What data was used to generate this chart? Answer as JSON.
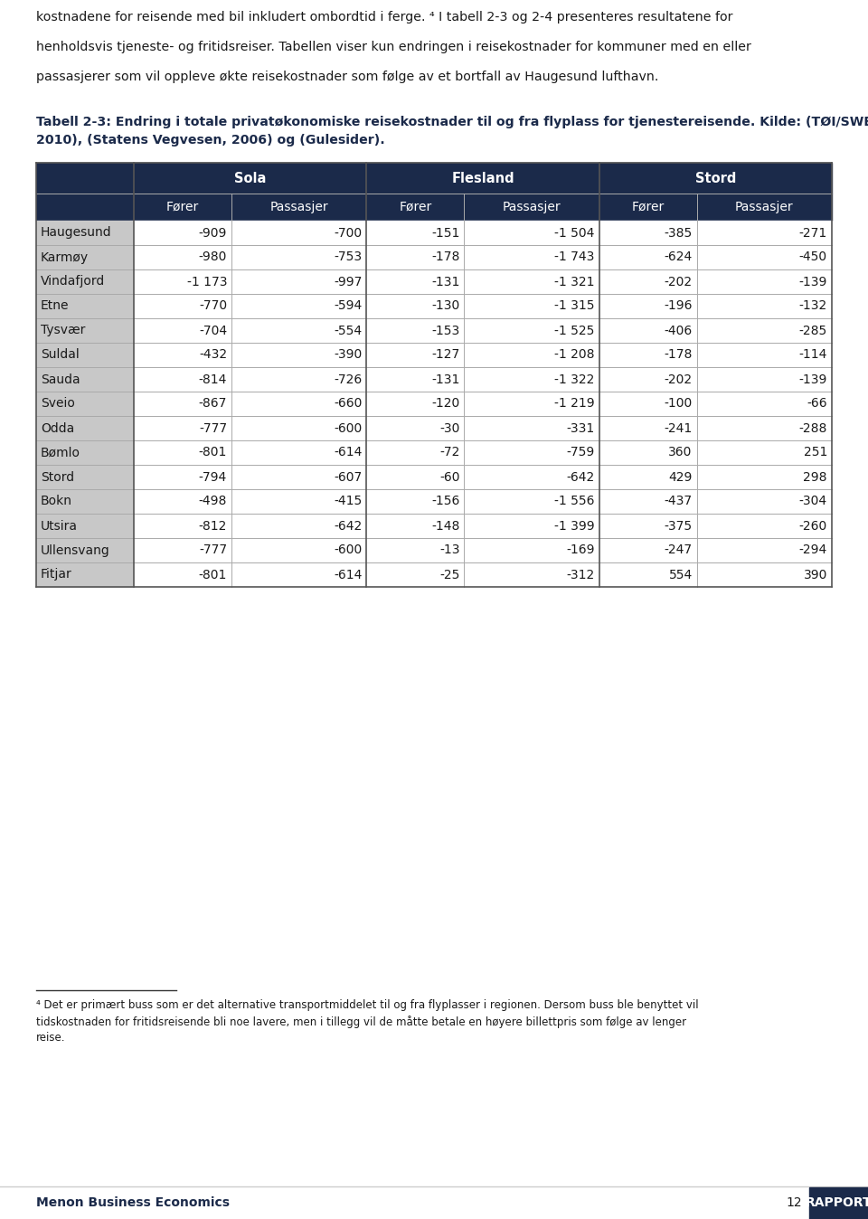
{
  "top_text_lines": [
    "kostnadene for reisende med bil inkludert ombordtid i ferge. ⁴ I tabell 2-3 og 2-4 presenteres resultatene for",
    "henholdsvis tjeneste- og fritidsreiser. Tabellen viser kun endringen i reisekostnader for kommuner med en eller",
    "passasjerer som vil oppleve økte reisekostnader som følge av et bortfall av Haugesund lufthavn."
  ],
  "caption_line1": "Tabell 2-3: Endring i totale privatøkonomiske reisekostnader til og fra flyplass for tjenestereisende. Kilde: (TØI/SWECO,",
  "caption_line2": "2010), (Statens Vegvesen, 2006) og (Gulesider).",
  "header_bg": "#1b2a4a",
  "header_text_color": "#ffffff",
  "row_label_bg": "#c8c8c8",
  "col_headers_level1_labels": [
    "Sola",
    "Flesland",
    "Stord"
  ],
  "col_headers_level2": [
    "Fører",
    "Passasjer",
    "Fører",
    "Passasjer",
    "Fører",
    "Passasjer"
  ],
  "rows": [
    [
      "Haugesund",
      "-909",
      "-700",
      "-151",
      "-1 504",
      "-385",
      "-271"
    ],
    [
      "Karmøy",
      "-980",
      "-753",
      "-178",
      "-1 743",
      "-624",
      "-450"
    ],
    [
      "Vindafjord",
      "-1 173",
      "-997",
      "-131",
      "-1 321",
      "-202",
      "-139"
    ],
    [
      "Etne",
      "-770",
      "-594",
      "-130",
      "-1 315",
      "-196",
      "-132"
    ],
    [
      "Tysvær",
      "-704",
      "-554",
      "-153",
      "-1 525",
      "-406",
      "-285"
    ],
    [
      "Suldal",
      "-432",
      "-390",
      "-127",
      "-1 208",
      "-178",
      "-114"
    ],
    [
      "Sauda",
      "-814",
      "-726",
      "-131",
      "-1 322",
      "-202",
      "-139"
    ],
    [
      "Sveio",
      "-867",
      "-660",
      "-120",
      "-1 219",
      "-100",
      "-66"
    ],
    [
      "Odda",
      "-777",
      "-600",
      "-30",
      "-331",
      "-241",
      "-288"
    ],
    [
      "Bømlo",
      "-801",
      "-614",
      "-72",
      "-759",
      "360",
      "251"
    ],
    [
      "Stord",
      "-794",
      "-607",
      "-60",
      "-642",
      "429",
      "298"
    ],
    [
      "Bokn",
      "-498",
      "-415",
      "-156",
      "-1 556",
      "-437",
      "-304"
    ],
    [
      "Utsira",
      "-812",
      "-642",
      "-148",
      "-1 399",
      "-375",
      "-260"
    ],
    [
      "Ullensvang",
      "-777",
      "-600",
      "-13",
      "-169",
      "-247",
      "-294"
    ],
    [
      "Fitjar",
      "-801",
      "-614",
      "-25",
      "-312",
      "554",
      "390"
    ]
  ],
  "footnote_text_line1": "⁴ Det er primært buss som er det alternative transportmiddelet til og fra flyplasser i regionen. Dersom buss ble benyttet vil",
  "footnote_text_line2": "tidskostnaden for fritidsreisende bli noe lavere, men i tillegg vil de måtte betale en høyere billettpris som følge av lenger",
  "footnote_text_line3": "reise.",
  "footer_left": "Menon Business Economics",
  "footer_page": "12",
  "footer_right": "RAPPORT",
  "footer_bg": "#1b2a4a",
  "footer_text_color": "#ffffff"
}
